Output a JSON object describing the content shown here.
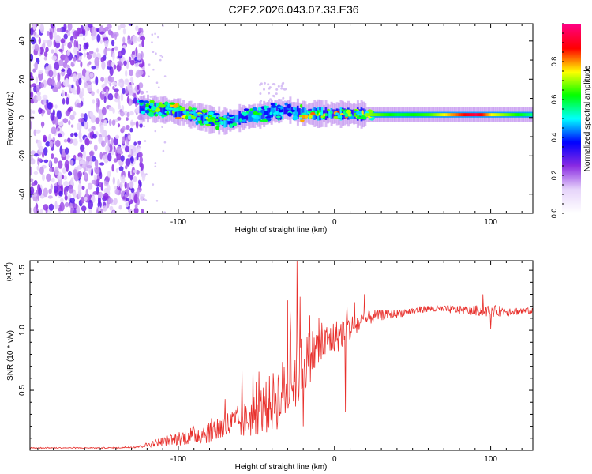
{
  "figure": {
    "title": "C2E2.2026.043.07.33.E36"
  },
  "chart_data": [
    {
      "type": "heatmap",
      "xlabel": "Height of straight line (km)",
      "ylabel": "Frequency (Hz)",
      "xlim": [
        -195,
        127
      ],
      "ylim": [
        -50,
        49
      ],
      "xticks": [
        -100,
        0,
        100
      ],
      "xtick_labels": [
        "-100",
        "0",
        "100"
      ],
      "yticks": [
        -40,
        -20,
        0,
        20,
        40
      ],
      "ytick_labels": [
        "-40",
        "-20",
        "0",
        "20",
        "40"
      ],
      "colorbar": {
        "label": "Normalized spectral amplitude",
        "range": [
          0.0,
          1.0
        ],
        "ticks": [
          0.0,
          0.2,
          0.4,
          0.6,
          0.8
        ],
        "tick_labels": [
          "0.0",
          "0.2",
          "0.4",
          "0.6",
          "0.8"
        ],
        "colormap": [
          "#ffffff",
          "#e6d4fa",
          "#8a2be2",
          "#0000ff",
          "#00ffff",
          "#00ff00",
          "#ffff00",
          "#ff0000",
          "#ff0080"
        ]
      },
      "noise_region": {
        "x_range": [
          -195,
          -122
        ],
        "note_amplitude": [
          0.05,
          0.25
        ]
      },
      "signal_track": [
        {
          "x": -125,
          "freq": 5,
          "amp": 0.55
        },
        {
          "x": -110,
          "freq": 4,
          "amp": 0.7
        },
        {
          "x": -100,
          "freq": 3,
          "amp": 0.75
        },
        {
          "x": -90,
          "freq": 1,
          "amp": 0.7
        },
        {
          "x": -80,
          "freq": -1,
          "amp": 0.65
        },
        {
          "x": -70,
          "freq": -2,
          "amp": 0.6
        },
        {
          "x": -60,
          "freq": 0,
          "amp": 0.55
        },
        {
          "x": -50,
          "freq": 1,
          "amp": 0.6
        },
        {
          "x": -40,
          "freq": 3,
          "amp": 0.55
        },
        {
          "x": -30,
          "freq": 4,
          "amp": 0.5
        },
        {
          "x": -20,
          "freq": 2,
          "amp": 0.75
        },
        {
          "x": -10,
          "freq": 2,
          "amp": 0.8
        },
        {
          "x": 0,
          "freq": 2,
          "amp": 0.8
        },
        {
          "x": 10,
          "freq": 2,
          "amp": 0.75
        },
        {
          "x": 20,
          "freq": 1.5,
          "amp": 0.7
        },
        {
          "x": 40,
          "freq": 1.5,
          "amp": 0.6
        },
        {
          "x": 60,
          "freq": 1.5,
          "amp": 0.65
        },
        {
          "x": 80,
          "freq": 1.5,
          "amp": 0.85
        },
        {
          "x": 90,
          "freq": 1.5,
          "amp": 0.95
        },
        {
          "x": 100,
          "freq": 1.5,
          "amp": 0.75
        },
        {
          "x": 127,
          "freq": 1.5,
          "amp": 0.55
        }
      ]
    },
    {
      "type": "line",
      "xlabel": "Height of straight line (km)",
      "ylabel": "SNR (10 * v/v)",
      "scale_label": "(x10",
      "scale_exponent": "4",
      "scale_close": ")",
      "xlim": [
        -195,
        127
      ],
      "ylim": [
        0,
        1.58
      ],
      "xticks": [
        -100,
        0,
        100
      ],
      "xtick_labels": [
        "-100",
        "0",
        "100"
      ],
      "yticks": [
        0.5,
        1.0,
        1.5
      ],
      "ytick_labels": [
        "0.5",
        "1.0",
        "1.5"
      ],
      "series": [
        {
          "name": "SNR",
          "color": "#e8302c",
          "envelope": [
            {
              "x": -195,
              "y": 0.02,
              "noise": 0.005
            },
            {
              "x": -140,
              "y": 0.02,
              "noise": 0.005
            },
            {
              "x": -125,
              "y": 0.03,
              "noise": 0.01
            },
            {
              "x": -115,
              "y": 0.06,
              "noise": 0.03
            },
            {
              "x": -100,
              "y": 0.1,
              "noise": 0.06
            },
            {
              "x": -85,
              "y": 0.14,
              "noise": 0.09
            },
            {
              "x": -70,
              "y": 0.2,
              "noise": 0.12
            },
            {
              "x": -55,
              "y": 0.26,
              "noise": 0.16
            },
            {
              "x": -45,
              "y": 0.35,
              "noise": 0.22
            },
            {
              "x": -35,
              "y": 0.45,
              "noise": 0.28
            },
            {
              "x": -25,
              "y": 0.62,
              "noise": 0.3
            },
            {
              "x": -15,
              "y": 0.8,
              "noise": 0.22
            },
            {
              "x": -5,
              "y": 0.9,
              "noise": 0.16
            },
            {
              "x": 5,
              "y": 0.98,
              "noise": 0.13
            },
            {
              "x": 15,
              "y": 1.05,
              "noise": 0.1
            },
            {
              "x": 25,
              "y": 1.12,
              "noise": 0.05
            },
            {
              "x": 40,
              "y": 1.14,
              "noise": 0.035
            },
            {
              "x": 60,
              "y": 1.18,
              "noise": 0.03
            },
            {
              "x": 80,
              "y": 1.17,
              "noise": 0.035
            },
            {
              "x": 100,
              "y": 1.16,
              "noise": 0.05
            },
            {
              "x": 127,
              "y": 1.16,
              "noise": 0.025
            }
          ],
          "spikes": [
            {
              "x": -24,
              "y": 1.58
            },
            {
              "x": -22,
              "y": 1.28
            },
            {
              "x": -30,
              "y": 1.25
            },
            {
              "x": -28,
              "y": 0.98
            },
            {
              "x": -20,
              "y": 0.2
            },
            {
              "x": -10,
              "y": 1.1
            },
            {
              "x": 7,
              "y": 0.32
            },
            {
              "x": 8,
              "y": 1.2
            },
            {
              "x": 95,
              "y": 1.3
            },
            {
              "x": 100,
              "y": 1.01
            }
          ]
        }
      ]
    }
  ]
}
